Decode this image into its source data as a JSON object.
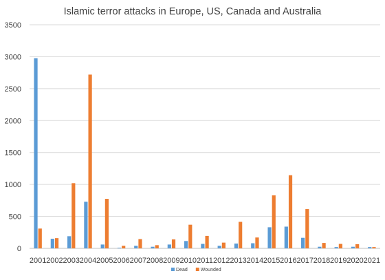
{
  "chart_data": {
    "type": "bar",
    "title": "Islamic terror attacks in Europe, US, Canada and Australia",
    "xlabel": "",
    "ylabel": "",
    "ylim": [
      0,
      3500
    ],
    "yticks": [
      0,
      500,
      1000,
      1500,
      2000,
      2500,
      3000,
      3500
    ],
    "grid": true,
    "legend_position": "bottom",
    "categories": [
      "2001",
      "2002",
      "2003",
      "2004",
      "2005",
      "2006",
      "2007",
      "2008",
      "2009",
      "2010",
      "2011",
      "2012",
      "2013",
      "2014",
      "2015",
      "2016",
      "2017",
      "2018",
      "2019",
      "2020",
      "2021"
    ],
    "series": [
      {
        "name": "Dead",
        "color": "#5b9bd5",
        "values": [
          2977,
          150,
          190,
          730,
          60,
          10,
          40,
          25,
          60,
          115,
          70,
          40,
          75,
          80,
          330,
          340,
          165,
          25,
          20,
          25,
          20
        ]
      },
      {
        "name": "Wounded",
        "color": "#ed7d31",
        "values": [
          310,
          160,
          1020,
          2720,
          775,
          40,
          145,
          50,
          140,
          370,
          195,
          90,
          415,
          170,
          830,
          1145,
          615,
          85,
          70,
          65,
          20
        ]
      }
    ]
  }
}
